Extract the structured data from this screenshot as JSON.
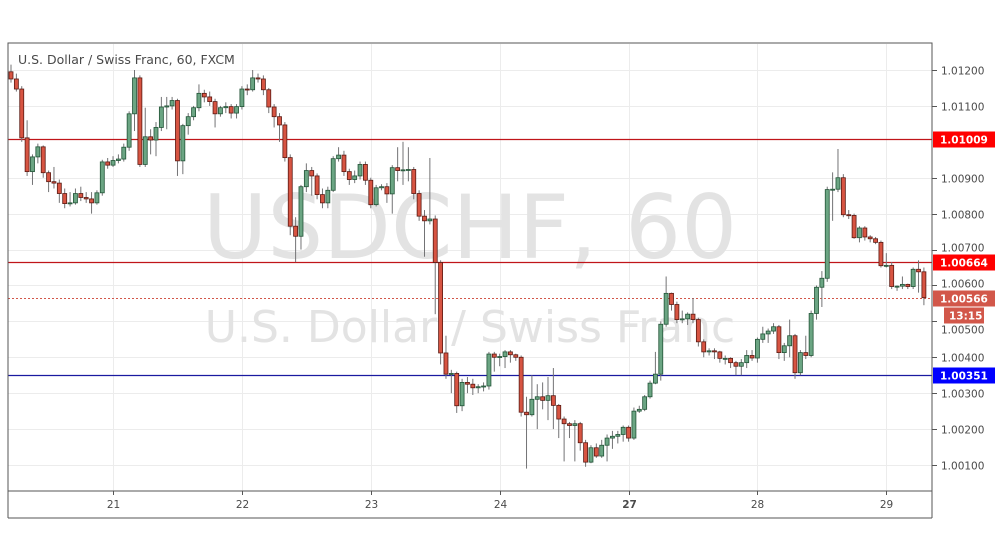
{
  "chart_data": {
    "type": "candlestick",
    "title": "U.S. Dollar / Swiss Franc, 60, FXCM",
    "watermark": {
      "symbol": "USDCHF, 60",
      "description": "U.S. Dollar / Swiss Franc"
    },
    "x_ticks": [
      {
        "label": "21",
        "index": 19,
        "bold": false
      },
      {
        "label": "22",
        "index": 43,
        "bold": false
      },
      {
        "label": "23",
        "index": 67,
        "bold": false
      },
      {
        "label": "24",
        "index": 91,
        "bold": false
      },
      {
        "label": "27",
        "index": 115,
        "bold": true
      },
      {
        "label": "28",
        "index": 139,
        "bold": false
      },
      {
        "label": "29",
        "index": 163,
        "bold": false
      }
    ],
    "y_ticks": [
      "1.01200",
      "1.01100",
      "1.00900",
      "1.00800",
      "1.00700",
      "1.00600",
      "1.00500",
      "1.00400",
      "1.00300",
      "1.00200",
      "1.00100"
    ],
    "ylim": [
      1.00045,
      1.0136
    ],
    "grid": true,
    "horizontal_lines": [
      {
        "value": 1.01009,
        "label": "1.01009",
        "color": "#c0151a",
        "label_bg": "#ff0000",
        "style": "solid"
      },
      {
        "value": 1.00664,
        "label": "1.00664",
        "color": "#c0151a",
        "label_bg": "#ff0000",
        "style": "solid"
      },
      {
        "value": 1.00351,
        "label": "1.00351",
        "color": "#1a1aa0",
        "label_bg": "#0000ff",
        "style": "solid"
      }
    ],
    "current_price": {
      "value": 1.00566,
      "label": "1.00566",
      "countdown": "13:15",
      "color": "#d2574a"
    },
    "colors": {
      "up_fill": "#6ba583",
      "up_border": "#225437",
      "down_fill": "#d75442",
      "down_border": "#5b1a13",
      "wick": "#737375"
    },
    "candles_format": [
      "open",
      "high",
      "low",
      "close"
    ],
    "candles": [
      [
        1.01195,
        1.01215,
        1.01165,
        1.01175
      ],
      [
        1.01175,
        1.0119,
        1.0114,
        1.01147
      ],
      [
        1.01147,
        1.01155,
        1.01,
        1.01011
      ],
      [
        1.01011,
        1.0106,
        1.00905,
        1.00917
      ],
      [
        1.00917,
        1.00965,
        1.0088,
        1.00958
      ],
      [
        1.00958,
        1.00995,
        1.0094,
        1.00986
      ],
      [
        1.00986,
        1.0099,
        1.009,
        1.00914
      ],
      [
        1.00914,
        1.0092,
        1.0086,
        1.00889
      ],
      [
        1.00889,
        1.0093,
        1.0087,
        1.00885
      ],
      [
        1.00885,
        1.00895,
        1.0083,
        1.00856
      ],
      [
        1.00856,
        1.0087,
        1.00815,
        1.00828
      ],
      [
        1.00828,
        1.0086,
        1.0082,
        1.0083
      ],
      [
        1.0083,
        1.0087,
        1.00825,
        1.00856
      ],
      [
        1.00856,
        1.00875,
        1.00835,
        1.00845
      ],
      [
        1.00845,
        1.0086,
        1.0083,
        1.00841
      ],
      [
        1.00841,
        1.0086,
        1.008,
        1.0083
      ],
      [
        1.0083,
        1.00865,
        1.00825,
        1.00858
      ],
      [
        1.00858,
        1.0095,
        1.0085,
        1.00944
      ],
      [
        1.00944,
        1.00955,
        1.00925,
        1.00935
      ],
      [
        1.00935,
        1.0096,
        1.0093,
        1.00948
      ],
      [
        1.00948,
        1.00965,
        1.0094,
        1.00952
      ],
      [
        1.00952,
        1.00995,
        1.00945,
        1.00985
      ],
      [
        1.00985,
        1.01085,
        1.00975,
        1.01078
      ],
      [
        1.01078,
        1.012,
        1.0103,
        1.01178
      ],
      [
        1.01178,
        1.01185,
        1.0093,
        1.00937
      ],
      [
        1.00937,
        1.01095,
        1.0093,
        1.01014
      ],
      [
        1.01014,
        1.01035,
        1.00965,
        1.01005
      ],
      [
        1.01005,
        1.01055,
        1.0096,
        1.0104
      ],
      [
        1.0104,
        1.01125,
        1.0103,
        1.01097
      ],
      [
        1.01097,
        1.01125,
        1.01035,
        1.011
      ],
      [
        1.011,
        1.01125,
        1.0109,
        1.01115
      ],
      [
        1.01115,
        1.0112,
        1.00905,
        1.00947
      ],
      [
        1.00947,
        1.0105,
        1.0091,
        1.01045
      ],
      [
        1.01045,
        1.0108,
        1.0102,
        1.0107
      ],
      [
        1.0107,
        1.011,
        1.0106,
        1.01095
      ],
      [
        1.01095,
        1.0116,
        1.01085,
        1.01135
      ],
      [
        1.01135,
        1.01145,
        1.0111,
        1.01125
      ],
      [
        1.01125,
        1.0114,
        1.011,
        1.01112
      ],
      [
        1.01112,
        1.0112,
        1.0104,
        1.01078
      ],
      [
        1.01078,
        1.011,
        1.0107,
        1.01095
      ],
      [
        1.01095,
        1.0111,
        1.0108,
        1.01098
      ],
      [
        1.01098,
        1.01105,
        1.01065,
        1.0108
      ],
      [
        1.0108,
        1.01105,
        1.01065,
        1.01098
      ],
      [
        1.01098,
        1.01155,
        1.0109,
        1.01147
      ],
      [
        1.01147,
        1.0116,
        1.0113,
        1.01145
      ],
      [
        1.01145,
        1.012,
        1.0114,
        1.01178
      ],
      [
        1.01178,
        1.0119,
        1.01165,
        1.01175
      ],
      [
        1.01175,
        1.01185,
        1.0113,
        1.01145
      ],
      [
        1.01145,
        1.0115,
        1.0108,
        1.01097
      ],
      [
        1.01097,
        1.01105,
        1.0104,
        1.0107
      ],
      [
        1.0107,
        1.0108,
        1.01,
        1.01047
      ],
      [
        1.01047,
        1.01055,
        1.00945,
        1.00956
      ],
      [
        1.00956,
        1.00965,
        1.0074,
        1.00765
      ],
      [
        1.00765,
        1.0079,
        1.00665,
        1.00737
      ],
      [
        1.00737,
        1.0088,
        1.007,
        1.00875
      ],
      [
        1.00875,
        1.0094,
        1.0086,
        1.0092
      ],
      [
        1.0092,
        1.0093,
        1.0085,
        1.00905
      ],
      [
        1.00905,
        1.00912,
        1.0084,
        1.00853
      ],
      [
        1.00853,
        1.0087,
        1.00815,
        1.0083
      ],
      [
        1.0083,
        1.00875,
        1.00815,
        1.00865
      ],
      [
        1.00865,
        1.0096,
        1.0086,
        1.00953
      ],
      [
        1.00953,
        1.00985,
        1.00945,
        1.00963
      ],
      [
        1.00963,
        1.00975,
        1.00905,
        1.00917
      ],
      [
        1.00917,
        1.00925,
        1.0088,
        1.00895
      ],
      [
        1.00895,
        1.0092,
        1.00885,
        1.00905
      ],
      [
        1.00905,
        1.00945,
        1.00895,
        1.00937
      ],
      [
        1.00937,
        1.00945,
        1.0088,
        1.00893
      ],
      [
        1.00893,
        1.009,
        1.00815,
        1.00825
      ],
      [
        1.00825,
        1.0088,
        1.0082,
        1.00872
      ],
      [
        1.00872,
        1.00882,
        1.00865,
        1.00875
      ],
      [
        1.00875,
        1.00885,
        1.0083,
        1.00855
      ],
      [
        1.00855,
        1.00935,
        1.008,
        1.00928
      ],
      [
        1.00928,
        1.00985,
        1.0089,
        1.0092
      ],
      [
        1.0092,
        1.01,
        1.0088,
        1.00922
      ],
      [
        1.00922,
        1.00985,
        1.0089,
        1.00923
      ],
      [
        1.00923,
        1.0093,
        1.0084,
        1.00856
      ],
      [
        1.00856,
        1.00865,
        1.0078,
        1.00793
      ],
      [
        1.00793,
        1.0081,
        1.0068,
        1.0078
      ],
      [
        1.0078,
        1.00955,
        1.0077,
        1.00785
      ],
      [
        1.00785,
        1.00795,
        1.0052,
        1.00664
      ],
      [
        1.00664,
        1.0067,
        1.0038,
        1.00412
      ],
      [
        1.00412,
        1.0046,
        1.0034,
        1.00353
      ],
      [
        1.00353,
        1.00365,
        1.003,
        1.00355
      ],
      [
        1.00355,
        1.0036,
        1.00245,
        1.00265
      ],
      [
        1.00265,
        1.0034,
        1.0025,
        1.0033
      ],
      [
        1.0033,
        1.00345,
        1.003,
        1.00325
      ],
      [
        1.00325,
        1.0034,
        1.00295,
        1.00315
      ],
      [
        1.00315,
        1.00325,
        1.003,
        1.00318
      ],
      [
        1.00318,
        1.0033,
        1.00305,
        1.0032
      ],
      [
        1.0032,
        1.00415,
        1.0031,
        1.00409
      ],
      [
        1.00409,
        1.00415,
        1.0036,
        1.004
      ],
      [
        1.004,
        1.0041,
        1.00375,
        1.00402
      ],
      [
        1.00402,
        1.0042,
        1.0037,
        1.00415
      ],
      [
        1.00415,
        1.0042,
        1.00385,
        1.00407
      ],
      [
        1.00407,
        1.0041,
        1.0039,
        1.004
      ],
      [
        1.004,
        1.00405,
        1.00235,
        1.00247
      ],
      [
        1.00247,
        1.0029,
        1.0009,
        1.0024
      ],
      [
        1.0024,
        1.0035,
        1.00235,
        1.00283
      ],
      [
        1.00283,
        1.00325,
        1.002,
        1.0029
      ],
      [
        1.0029,
        1.0033,
        1.00255,
        1.0028
      ],
      [
        1.0028,
        1.00345,
        1.00225,
        1.00293
      ],
      [
        1.00293,
        1.0037,
        1.002,
        1.00266
      ],
      [
        1.00266,
        1.0027,
        1.00175,
        1.00228
      ],
      [
        1.00228,
        1.00235,
        1.0011,
        1.00215
      ],
      [
        1.00215,
        1.0022,
        1.00175,
        1.0021
      ],
      [
        1.0021,
        1.00225,
        1.0011,
        1.00215
      ],
      [
        1.00215,
        1.0022,
        1.0014,
        1.00162
      ],
      [
        1.00162,
        1.0017,
        1.00095,
        1.00108
      ],
      [
        1.00108,
        1.00155,
        1.00105,
        1.00148
      ],
      [
        1.00148,
        1.0016,
        1.0012,
        1.00125
      ],
      [
        1.00125,
        1.0017,
        1.0012,
        1.00155
      ],
      [
        1.00155,
        1.00185,
        1.0011,
        1.00175
      ],
      [
        1.00175,
        1.00195,
        1.00145,
        1.0018
      ],
      [
        1.0018,
        1.00195,
        1.0016,
        1.00185
      ],
      [
        1.00185,
        1.0021,
        1.00165,
        1.00205
      ],
      [
        1.00205,
        1.0021,
        1.00165,
        1.00175
      ],
      [
        1.00175,
        1.0026,
        1.0017,
        1.0025
      ],
      [
        1.0025,
        1.00265,
        1.00245,
        1.00255
      ],
      [
        1.00255,
        1.00295,
        1.0025,
        1.0029
      ],
      [
        1.0029,
        1.00335,
        1.00285,
        1.00328
      ],
      [
        1.00328,
        1.00415,
        1.00325,
        1.00353
      ],
      [
        1.00353,
        1.005,
        1.00335,
        1.00492
      ],
      [
        1.00492,
        1.00625,
        1.00485,
        1.00578
      ],
      [
        1.00578,
        1.0058,
        1.0053,
        1.00547
      ],
      [
        1.00547,
        1.00555,
        1.00495,
        1.00505
      ],
      [
        1.00505,
        1.0053,
        1.00495,
        1.00507
      ],
      [
        1.00507,
        1.00525,
        1.0049,
        1.0052
      ],
      [
        1.0052,
        1.00565,
        1.00495,
        1.00505
      ],
      [
        1.00505,
        1.0051,
        1.0043,
        1.00443
      ],
      [
        1.00443,
        1.0045,
        1.004,
        1.00415
      ],
      [
        1.00415,
        1.00425,
        1.00405,
        1.00418
      ],
      [
        1.00418,
        1.00425,
        1.00395,
        1.00415
      ],
      [
        1.00415,
        1.00418,
        1.00385,
        1.00397
      ],
      [
        1.00397,
        1.00405,
        1.0038,
        1.00397
      ],
      [
        1.00397,
        1.004,
        1.0037,
        1.00385
      ],
      [
        1.00385,
        1.0039,
        1.0035,
        1.00375
      ],
      [
        1.00375,
        1.00395,
        1.0035,
        1.00385
      ],
      [
        1.00385,
        1.0042,
        1.0037,
        1.00405
      ],
      [
        1.00405,
        1.0042,
        1.0039,
        1.00398
      ],
      [
        1.00398,
        1.00455,
        1.00385,
        1.0045
      ],
      [
        1.0045,
        1.00485,
        1.0044,
        1.00465
      ],
      [
        1.00465,
        1.0048,
        1.0044,
        1.00473
      ],
      [
        1.00473,
        1.00495,
        1.00465,
        1.00485
      ],
      [
        1.00485,
        1.0049,
        1.00395,
        1.00413
      ],
      [
        1.00413,
        1.0044,
        1.0039,
        1.00432
      ],
      [
        1.00432,
        1.00505,
        1.004,
        1.0046
      ],
      [
        1.0046,
        1.00465,
        1.0034,
        1.00357
      ],
      [
        1.00357,
        1.0042,
        1.0035,
        1.00413
      ],
      [
        1.00413,
        1.0046,
        1.00395,
        1.00405
      ],
      [
        1.00405,
        1.0053,
        1.004,
        1.00522
      ],
      [
        1.00522,
        1.006,
        1.00505,
        1.00595
      ],
      [
        1.00595,
        1.0064,
        1.0054,
        1.0062
      ],
      [
        1.0062,
        1.00875,
        1.0061,
        1.00867
      ],
      [
        1.00867,
        1.00915,
        1.0078,
        1.00868
      ],
      [
        1.00868,
        1.0098,
        1.0086,
        1.009
      ],
      [
        1.009,
        1.0091,
        1.0079,
        1.00797
      ],
      [
        1.00797,
        1.0081,
        1.00785,
        1.00795
      ],
      [
        1.00795,
        1.008,
        1.0073,
        1.00733
      ],
      [
        1.00733,
        1.00765,
        1.0072,
        1.0076
      ],
      [
        1.0076,
        1.00765,
        1.00725,
        1.00735
      ],
      [
        1.00735,
        1.0074,
        1.0072,
        1.0073
      ],
      [
        1.0073,
        1.00735,
        1.00715,
        1.0072
      ],
      [
        1.0072,
        1.00725,
        1.0065,
        1.00655
      ],
      [
        1.00655,
        1.0069,
        1.0065,
        1.00656
      ],
      [
        1.00656,
        1.00665,
        1.0059,
        1.00597
      ],
      [
        1.00597,
        1.006,
        1.00585,
        1.00598
      ],
      [
        1.00598,
        1.00625,
        1.0059,
        1.00603
      ],
      [
        1.00603,
        1.00605,
        1.0059,
        1.00597
      ],
      [
        1.00597,
        1.0065,
        1.0059,
        1.00645
      ],
      [
        1.00645,
        1.0067,
        1.0058,
        1.00638
      ],
      [
        1.00638,
        1.0065,
        1.00545,
        1.00566
      ]
    ]
  }
}
